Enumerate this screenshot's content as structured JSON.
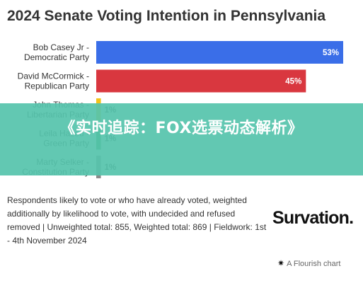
{
  "chart_data": {
    "type": "bar",
    "orientation": "horizontal",
    "title": "2024 Senate Voting Intention in Pennsylvania",
    "categories": [
      [
        "Bob Casey Jr -",
        "Democratic Party"
      ],
      [
        "David McCormick -",
        "Republican Party"
      ],
      [
        "John Thomas -",
        "Libertarian Party"
      ],
      [
        "Leila Hazou -",
        "Green Party"
      ],
      [
        "Marty Selker -",
        "Constitution Party"
      ]
    ],
    "values": [
      53,
      45,
      1,
      1,
      1
    ],
    "value_labels": [
      "53%",
      "45%",
      "1%",
      "1%",
      "1%"
    ],
    "colors": [
      "#3a6ee8",
      "#d9373f",
      "#f2c31b",
      "#2aa14e",
      "#8c8c8c"
    ],
    "xlim": [
      0,
      53
    ],
    "grid": false,
    "legend": "none"
  },
  "overlay": {
    "text": "《实时追踪：FOX选票动态解析》",
    "color": "#56c4ac"
  },
  "footnote": "Respondents likely to vote or who have already voted, weighted additionally by likelihood to vote, with undecided and refused removed | Unweighted total: 855, Weighted total: 869 | Fieldwork: 1st - 4th November 2024",
  "brand": "Survation.",
  "credit": {
    "icon": "flourish-star-icon",
    "text": "A Flourish chart"
  }
}
